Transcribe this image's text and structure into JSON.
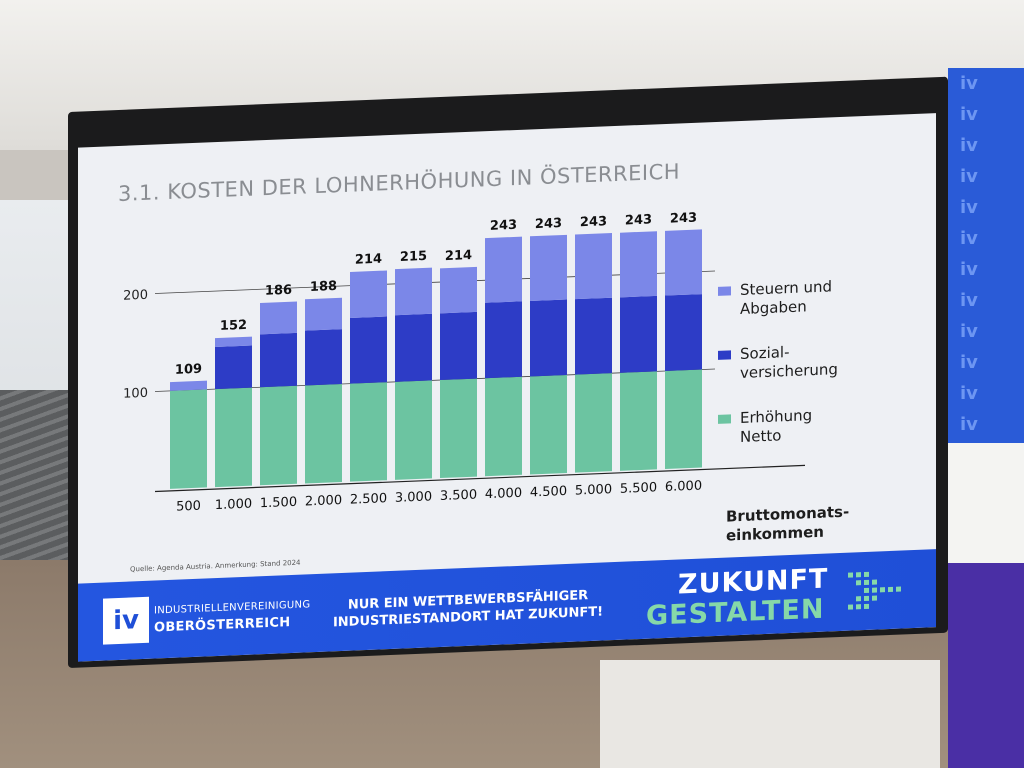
{
  "slide": {
    "title": "3.1. KOSTEN DER LOHNERHÖHUNG IN ÖSTERREICH",
    "x_title_line1": "Bruttomonats-",
    "x_title_line2": "einkommen",
    "source": "Quelle: Agenda Austria. Anmerkung: Stand 2024"
  },
  "legend": [
    {
      "label_line1": "Steuern und",
      "label_line2": "Abgaben",
      "color": "#7b87e8"
    },
    {
      "label_line1": "Sozial-",
      "label_line2": "versicherung",
      "color": "#2d3cc6"
    },
    {
      "label_line1": "Erhöhung",
      "label_line2": "Netto",
      "color": "#6cc4a1"
    }
  ],
  "banner": {
    "logo_text": "iv",
    "org_line1": "INDUSTRIELLENVEREINIGUNG",
    "org_line2": "OBERÖSTERREICH",
    "slogan_line1": "NUR EIN WETTBEWERBSFÄHIGER",
    "slogan_line2": "INDUSTRIESTANDORT HAT ZUKUNFT!",
    "tagline_line1": "ZUKUNFT",
    "tagline_line2": "GESTALTEN"
  },
  "side_panel_text": "iv",
  "chart_data": {
    "type": "bar",
    "stacked": true,
    "categories": [
      "500",
      "1.000",
      "1.500",
      "2.000",
      "2.500",
      "3.000",
      "3.500",
      "4.000",
      "4.500",
      "5.000",
      "5.500",
      "6.000"
    ],
    "totals": [
      109,
      152,
      186,
      188,
      214,
      215,
      214,
      243,
      243,
      243,
      243,
      243
    ],
    "series": [
      {
        "name": "Erhöhung Netto",
        "values": [
          100,
          100,
          100,
          100,
          100,
          100,
          100,
          100,
          100,
          100,
          100,
          100
        ],
        "color": "#6cc4a1"
      },
      {
        "name": "Sozialversicherung",
        "values": [
          0,
          43,
          54,
          56,
          67,
          68,
          68,
          77,
          77,
          77,
          77,
          77
        ],
        "color": "#2d3cc6"
      },
      {
        "name": "Steuern und Abgaben",
        "values": [
          9,
          9,
          32,
          32,
          47,
          47,
          46,
          66,
          66,
          66,
          66,
          66
        ],
        "color": "#7b87e8"
      }
    ],
    "ytick_labels": [
      "100",
      "200"
    ],
    "ylim": [
      0,
      250
    ],
    "grid": true
  }
}
